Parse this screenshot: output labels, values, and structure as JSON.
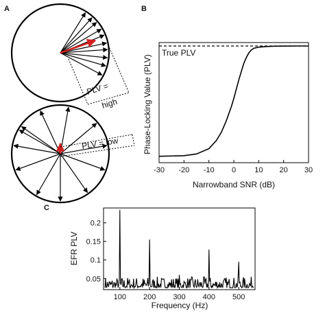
{
  "panels": {
    "a": {
      "letter": "A",
      "annotations": {
        "plv_high_line1": "PLV =",
        "plv_high_line2": "high",
        "plv_low": "PLV = low"
      }
    },
    "b": {
      "letter": "B"
    },
    "c": {
      "letter": "C"
    }
  },
  "colors": {
    "axis": "#000000",
    "resultant_vector": "#d22020",
    "curve": "#000000"
  },
  "chart_data": [
    {
      "panel": "B",
      "type": "line",
      "title": "",
      "xlabel": "Narrowband SNR (dB)",
      "ylabel": "Phase-Locking Value (PLV)",
      "xlim": [
        -30,
        30
      ],
      "ylim": [
        0,
        1
      ],
      "xticks": [
        -30,
        -20,
        -10,
        0,
        10,
        20,
        30
      ],
      "yticks": [],
      "grid": false,
      "series": [
        {
          "x": [
            -30,
            -20,
            -15,
            -10,
            -7,
            -5,
            -3,
            -1,
            0,
            1,
            2,
            3,
            4,
            5,
            6,
            7,
            8,
            10,
            13,
            16,
            20,
            25,
            30
          ],
          "y": [
            0.055,
            0.06,
            0.075,
            0.12,
            0.19,
            0.26,
            0.36,
            0.48,
            0.55,
            0.63,
            0.71,
            0.78,
            0.85,
            0.9,
            0.94,
            0.965,
            0.98,
            0.99,
            0.995,
            0.998,
            0.999,
            1.0,
            1.0
          ]
        }
      ],
      "reference_line": {
        "label": "True PLV",
        "y": 1.0,
        "style": "dashed"
      }
    },
    {
      "panel": "C",
      "type": "line",
      "title": "",
      "xlabel": "Frequency (Hz)",
      "ylabel": "EFR PLV",
      "xlim": [
        45,
        555
      ],
      "ylim": [
        0.02,
        0.24
      ],
      "xticks": [
        100,
        200,
        300,
        400,
        500
      ],
      "yticks": [
        0.05,
        0.1,
        0.15,
        0.2
      ],
      "ytick_labels": [
        "0.05",
        "0.1",
        "0.15",
        "0.2"
      ],
      "grid": false,
      "peaks": [
        {
          "x": 100,
          "y": 0.235
        },
        {
          "x": 200,
          "y": 0.155
        },
        {
          "x": 300,
          "y": 0.06
        },
        {
          "x": 400,
          "y": 0.128
        },
        {
          "x": 500,
          "y": 0.095
        }
      ],
      "noise_floor": [
        0.025,
        0.055
      ],
      "series": [
        {
          "x_start": 50,
          "x_step": 2,
          "samples": 251
        }
      ]
    }
  ]
}
